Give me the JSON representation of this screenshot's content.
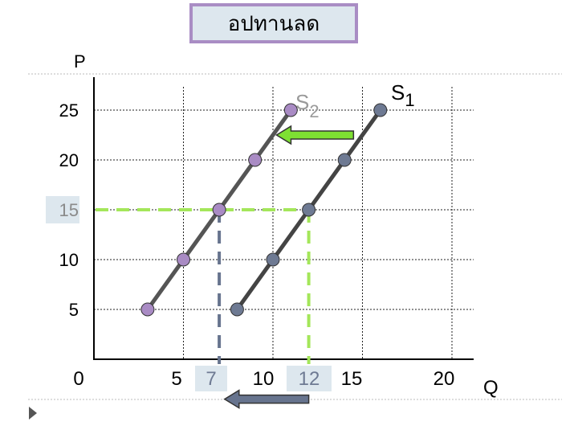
{
  "slide": {
    "title": "อปทานลด"
  },
  "chart_data": {
    "type": "line",
    "xlabel": "Q",
    "ylabel": "P",
    "xlim": [
      0,
      22
    ],
    "ylim": [
      0,
      28
    ],
    "x_ticks": [
      "0",
      "5",
      "7",
      "10",
      "12",
      "15",
      "20"
    ],
    "x_tick_values": [
      0,
      5,
      7,
      10,
      12,
      15,
      20
    ],
    "y_ticks": [
      "5",
      "10",
      "15",
      "20",
      "25"
    ],
    "y_tick_values": [
      5,
      10,
      15,
      20,
      25
    ],
    "highlighted_ticks": {
      "x": [
        "7",
        "12"
      ],
      "y": [
        "15"
      ]
    },
    "grid": true,
    "series": [
      {
        "name": "S1",
        "label_main": "S",
        "label_sub": "1",
        "color": "#444444",
        "marker_color": "#6e7a93",
        "points": [
          [
            8,
            5
          ],
          [
            10,
            10
          ],
          [
            12,
            15
          ],
          [
            14,
            20
          ],
          [
            16,
            25
          ]
        ]
      },
      {
        "name": "S2",
        "label_main": "S",
        "label_sub": "2",
        "color": "#555555",
        "marker_color": "#a98bc4",
        "points": [
          [
            3,
            5
          ],
          [
            5,
            10
          ],
          [
            7,
            15
          ],
          [
            9,
            20
          ],
          [
            11,
            25
          ]
        ]
      }
    ],
    "annotations": {
      "supply_shift_arrow": {
        "from": [
          14.5,
          22.5
        ],
        "to": [
          10.2,
          22.5
        ],
        "color": "#7ee032"
      },
      "quantity_change_arrow": {
        "from": [
          12,
          -4
        ],
        "to": [
          7.3,
          -4
        ],
        "color": "#67748e"
      },
      "equilibrium_guides": [
        {
          "q": 7,
          "p": 15,
          "color": "#67748e"
        },
        {
          "q": 12,
          "p": 15,
          "color": "#a4e65a"
        }
      ]
    },
    "colors": {
      "highlight_box": "#dde7ee",
      "title_border": "#a98dc4"
    }
  }
}
